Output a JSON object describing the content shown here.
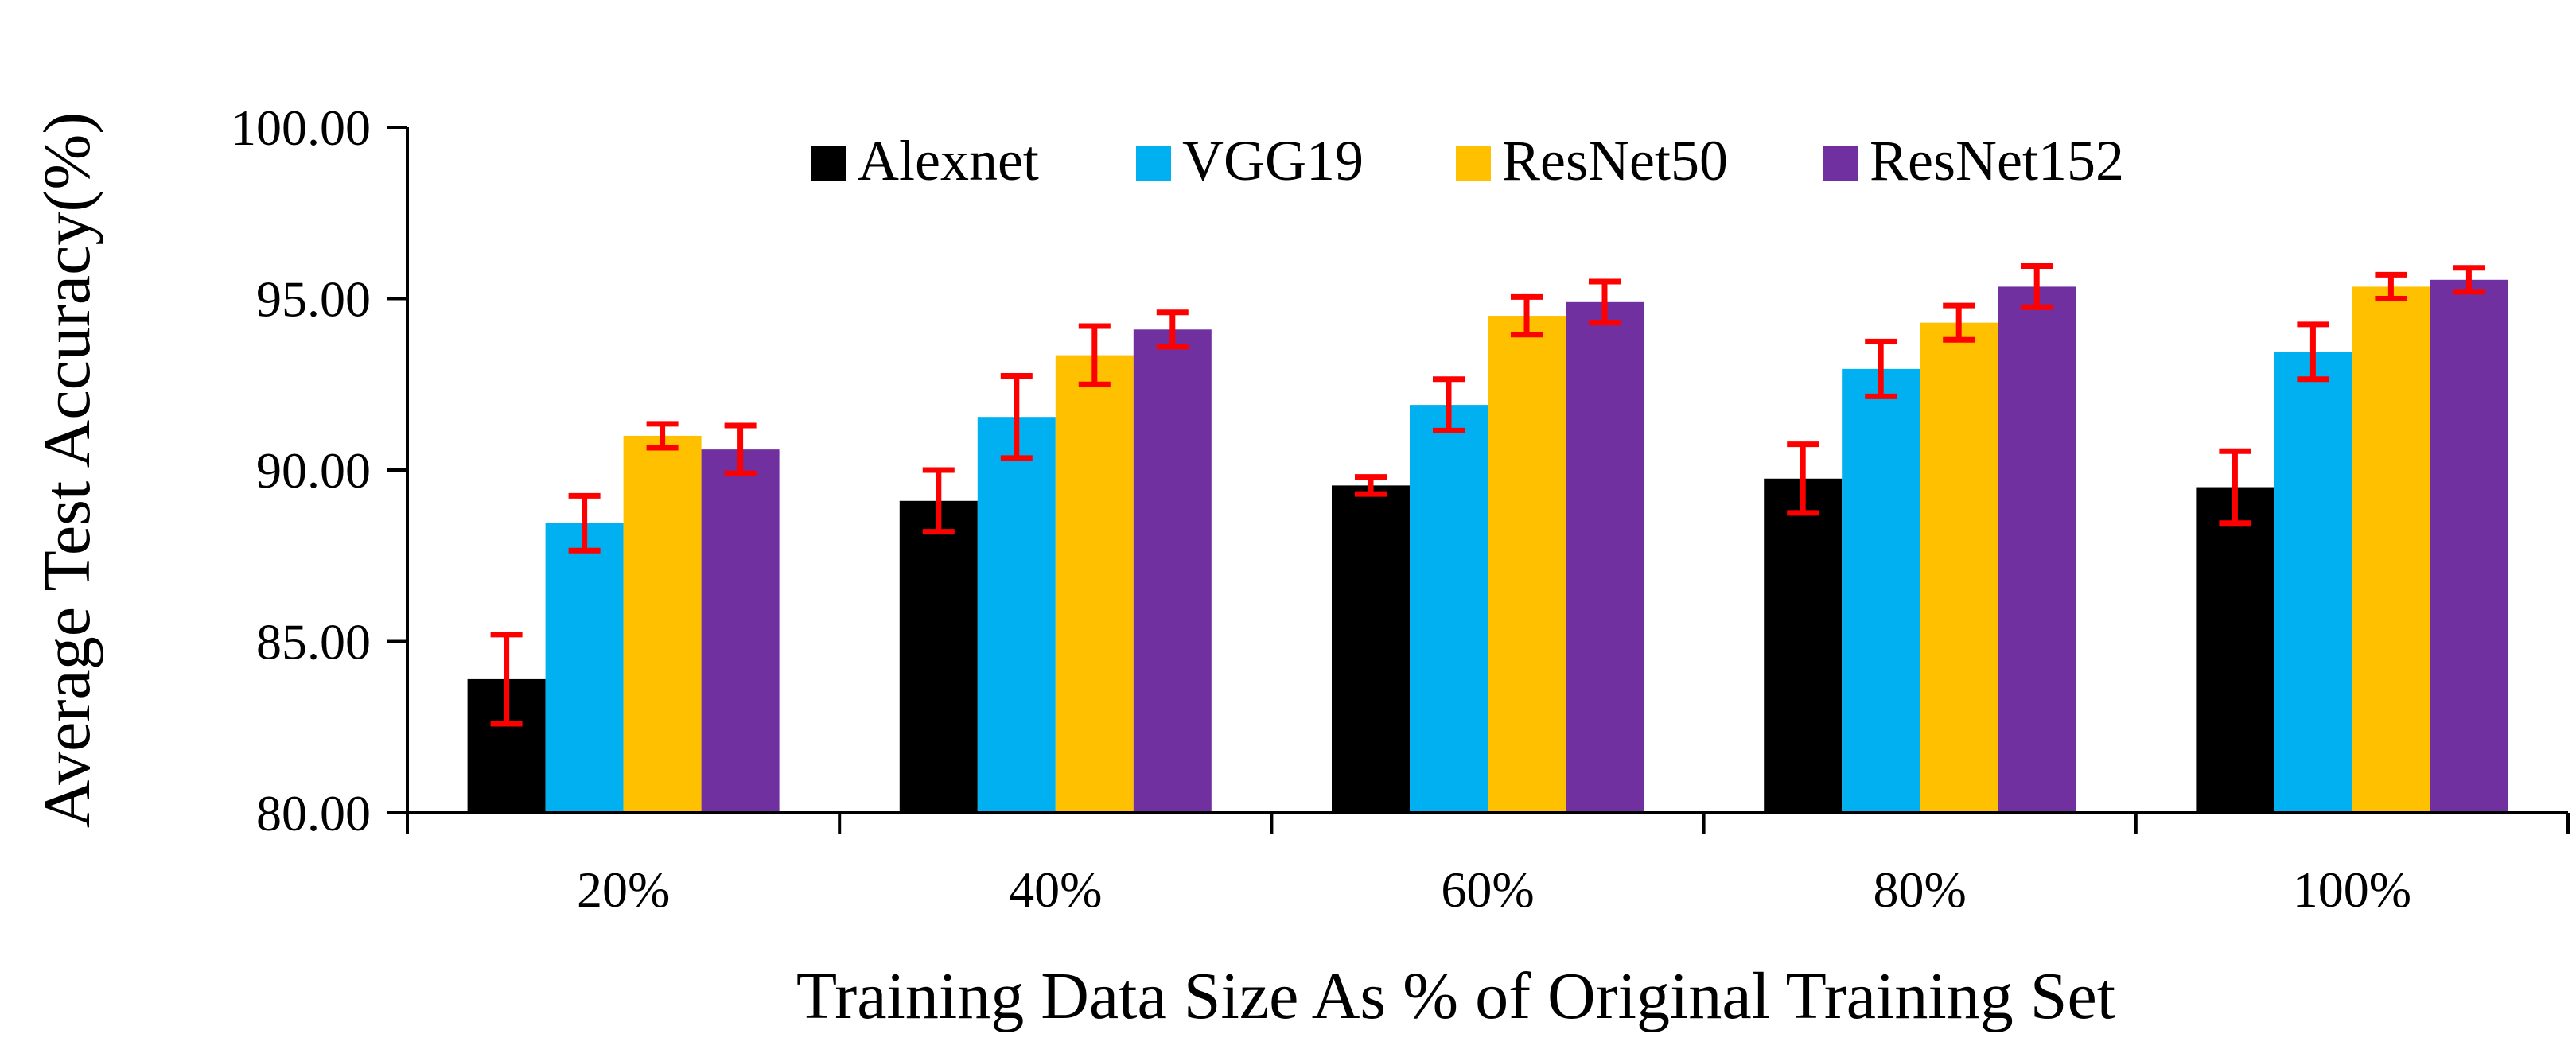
{
  "chart_data": {
    "type": "bar",
    "title": "",
    "xlabel": "Training Data Size As % of Original Training Set",
    "ylabel": "Average Test Accuracy(%)",
    "ylim": [
      80,
      100
    ],
    "yticks": [
      "80.00",
      "85.00",
      "90.00",
      "95.00",
      "100.00"
    ],
    "categories": [
      "20%",
      "40%",
      "60%",
      "80%",
      "100%"
    ],
    "legend_position": "top-center",
    "grid": false,
    "series": [
      {
        "name": "Alexnet",
        "color": "#000000",
        "values": [
          83.9,
          89.1,
          89.55,
          89.75,
          89.5
        ],
        "errors": [
          1.3,
          0.9,
          0.25,
          1.0,
          1.05
        ]
      },
      {
        "name": "VGG19",
        "color": "#00B0F0",
        "values": [
          88.45,
          91.55,
          91.9,
          92.95,
          93.45
        ],
        "errors": [
          0.8,
          1.2,
          0.75,
          0.8,
          0.8
        ]
      },
      {
        "name": "ResNet50",
        "color": "#FFC000",
        "values": [
          91.0,
          93.35,
          94.5,
          94.3,
          95.35
        ],
        "errors": [
          0.35,
          0.85,
          0.55,
          0.5,
          0.35
        ]
      },
      {
        "name": "ResNet152",
        "color": "#7030A0",
        "values": [
          90.6,
          94.1,
          94.9,
          95.35,
          95.55
        ],
        "errors": [
          0.7,
          0.5,
          0.6,
          0.6,
          0.35
        ]
      }
    ],
    "error_bar_color": "#FF0000"
  }
}
